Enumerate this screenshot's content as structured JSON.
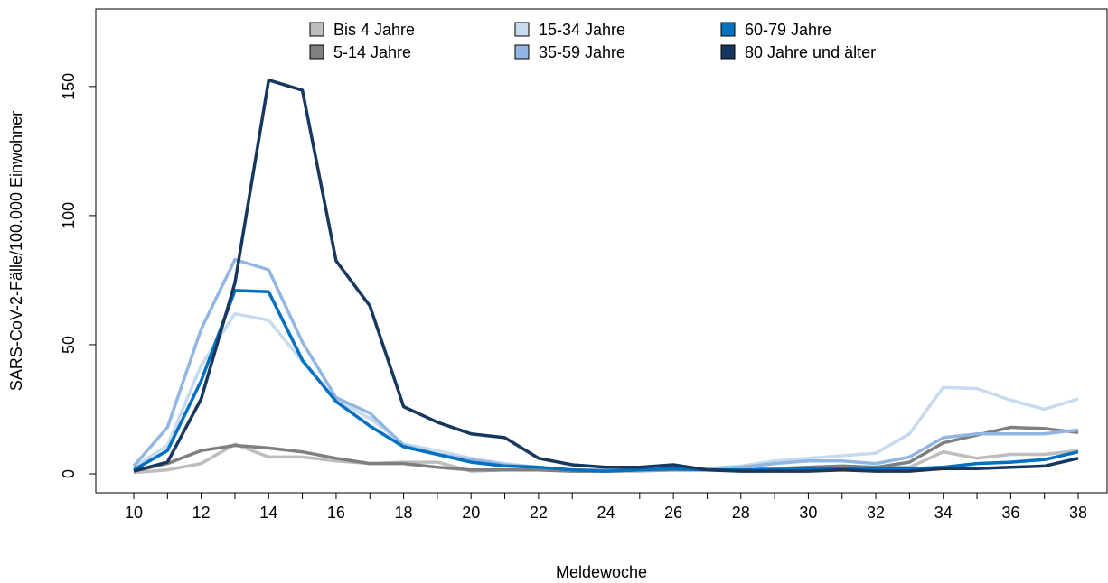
{
  "chart_data": {
    "type": "line",
    "title": "",
    "xlabel": "Meldewoche",
    "ylabel": "SARS-CoV-2-Fälle/100.000 Einwohner",
    "xlim": [
      10,
      38
    ],
    "ylim": [
      0,
      180
    ],
    "x": [
      10,
      11,
      12,
      13,
      14,
      15,
      16,
      17,
      18,
      19,
      20,
      21,
      22,
      23,
      24,
      25,
      26,
      27,
      28,
      29,
      30,
      31,
      32,
      33,
      34,
      35,
      36,
      37,
      38
    ],
    "xticks": [
      10,
      12,
      14,
      16,
      18,
      20,
      22,
      24,
      26,
      28,
      30,
      32,
      34,
      36,
      38
    ],
    "yticks": [
      0,
      50,
      100,
      150
    ],
    "legend_position": "top",
    "series": [
      {
        "name": "Bis 4 Jahre",
        "color": "#bdbdbd",
        "values": [
          0.5,
          1.5,
          4,
          11.5,
          6.5,
          6.5,
          5,
          4,
          4.5,
          4.5,
          1,
          1.5,
          1.5,
          1,
          1,
          1,
          1.5,
          1.5,
          1.5,
          2,
          2.5,
          3,
          2.5,
          2.5,
          8.5,
          6,
          7.5,
          7.5,
          9
        ]
      },
      {
        "name": "5-14 Jahre",
        "color": "#7f7f7f",
        "values": [
          1,
          4,
          9,
          11,
          10,
          8.5,
          6,
          4,
          4,
          2.5,
          1.5,
          1.5,
          1.5,
          1,
          1,
          1.5,
          1.5,
          1.5,
          1.5,
          2,
          2.5,
          3,
          2.5,
          4.5,
          12,
          15,
          18,
          17.5,
          16
        ]
      },
      {
        "name": "15-34 Jahre",
        "color": "#c6dbef",
        "values": [
          2.5,
          11,
          42,
          62,
          59.5,
          43.5,
          28.5,
          21.5,
          11.5,
          9,
          6,
          4,
          2.5,
          1.5,
          1.5,
          2,
          2,
          2,
          3,
          5,
          6,
          7,
          8,
          15.5,
          33.5,
          33,
          28.5,
          25,
          29
        ]
      },
      {
        "name": "35-59 Jahre",
        "color": "#92b6e2",
        "values": [
          3,
          18,
          56,
          83,
          79,
          51,
          29.5,
          23.5,
          11,
          7.5,
          5.5,
          3.5,
          2.5,
          1.5,
          1.5,
          2,
          2,
          2,
          2.5,
          4,
          5,
          5,
          4,
          6.5,
          14,
          15.5,
          15.5,
          15.5,
          17
        ]
      },
      {
        "name": "60-79 Jahre",
        "color": "#0070c0",
        "values": [
          1.5,
          9,
          36,
          71,
          70.5,
          44,
          28,
          18.5,
          10.5,
          7.5,
          4.5,
          3,
          2.5,
          1.5,
          1,
          1.5,
          2,
          1.5,
          1.5,
          1.5,
          2,
          2,
          2,
          2,
          2.5,
          4,
          4.5,
          5.5,
          8.5
        ]
      },
      {
        "name": "80 Jahre und älter",
        "color": "#17375e",
        "values": [
          1,
          4.5,
          29,
          74,
          152.5,
          148.5,
          82.5,
          65,
          26,
          20,
          15.5,
          14,
          6,
          3.5,
          2.5,
          2.5,
          3.5,
          1.5,
          1,
          1,
          1,
          1.5,
          1,
          1,
          2,
          2,
          2.5,
          3,
          6
        ]
      }
    ]
  }
}
